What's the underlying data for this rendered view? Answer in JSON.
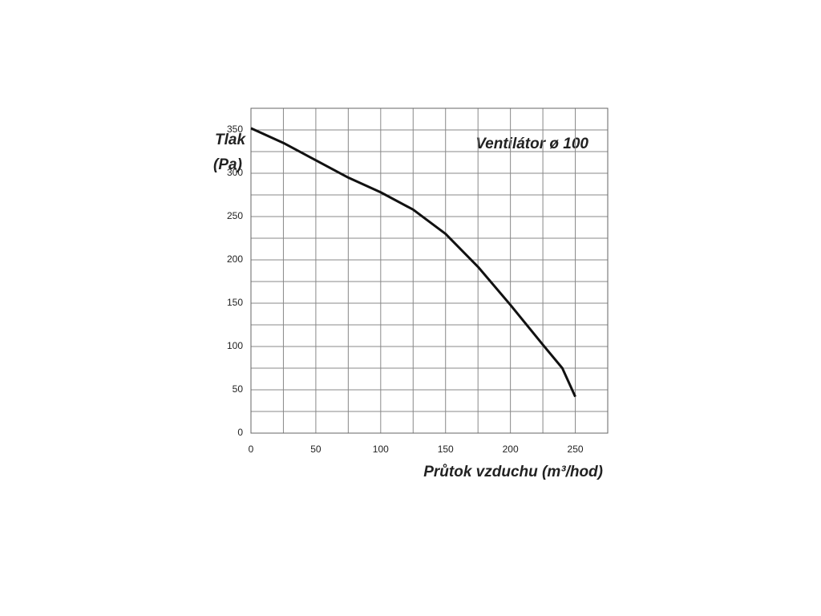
{
  "chart_data": {
    "type": "line",
    "title": "Ventilátor ø 100",
    "y_label_lines": [
      "Tlak",
      "(Pa)"
    ],
    "x_label": "Průtok vzduchu (m³/hod)",
    "x": [
      0,
      25,
      50,
      75,
      100,
      125,
      150,
      175,
      200,
      225,
      240,
      250
    ],
    "series": [
      {
        "color": "#111111",
        "values": [
          352,
          335,
          315,
          295,
          278,
          258,
          230,
          192,
          148,
          102,
          75,
          42
        ]
      }
    ],
    "xlim": [
      0,
      275
    ],
    "ylim": [
      0,
      375
    ],
    "xticks": [
      0,
      50,
      100,
      150,
      200,
      250
    ],
    "yticks": [
      0,
      50,
      100,
      150,
      200,
      250,
      300,
      350
    ],
    "x_minor_grid": [
      25,
      75,
      125,
      175,
      225,
      275
    ],
    "y_minor_grid": [
      25,
      75,
      125,
      175,
      225,
      275,
      325,
      375
    ],
    "grid": true
  }
}
